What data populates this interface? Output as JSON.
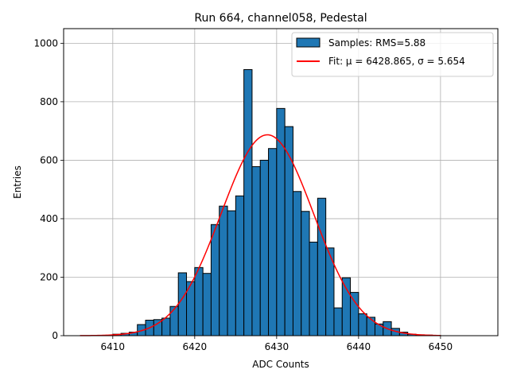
{
  "chart_data": {
    "type": "bar",
    "title": "Run 664, channel058, Pedestal",
    "xlabel": "ADC Counts",
    "ylabel": "Entries",
    "xlim": [
      6404,
      6457
    ],
    "ylim": [
      0,
      1050
    ],
    "x_ticks": [
      6410,
      6420,
      6430,
      6440,
      6450
    ],
    "y_ticks": [
      0,
      200,
      400,
      600,
      800,
      1000
    ],
    "grid": true,
    "legend_placement": "top-right",
    "bin_width": 1,
    "histogram": {
      "name": "Samples: RMS=5.88",
      "color": "#1f77b4",
      "bin_starts": [
        6410,
        6411,
        6412,
        6413,
        6414,
        6415,
        6416,
        6417,
        6418,
        6419,
        6420,
        6421,
        6422,
        6423,
        6424,
        6425,
        6426,
        6427,
        6428,
        6429,
        6430,
        6431,
        6432,
        6433,
        6434,
        6435,
        6436,
        6437,
        6438,
        6439,
        6440,
        6441,
        6442,
        6443,
        6444,
        6445,
        6446,
        6447,
        6448,
        6449
      ],
      "counts": [
        5,
        8,
        12,
        38,
        53,
        55,
        60,
        100,
        215,
        185,
        233,
        213,
        380,
        443,
        427,
        478,
        910,
        578,
        600,
        640,
        777,
        715,
        493,
        425,
        320,
        470,
        300,
        95,
        198,
        148,
        75,
        63,
        40,
        48,
        25,
        12,
        5,
        3,
        2,
        1
      ]
    },
    "fit": {
      "name": "Fit: μ = 6428.865, σ = 5.654",
      "color": "#ff0000",
      "mu": 6428.865,
      "sigma": 5.654,
      "amplitude": 687,
      "x_range": [
        6406,
        6450
      ]
    }
  }
}
